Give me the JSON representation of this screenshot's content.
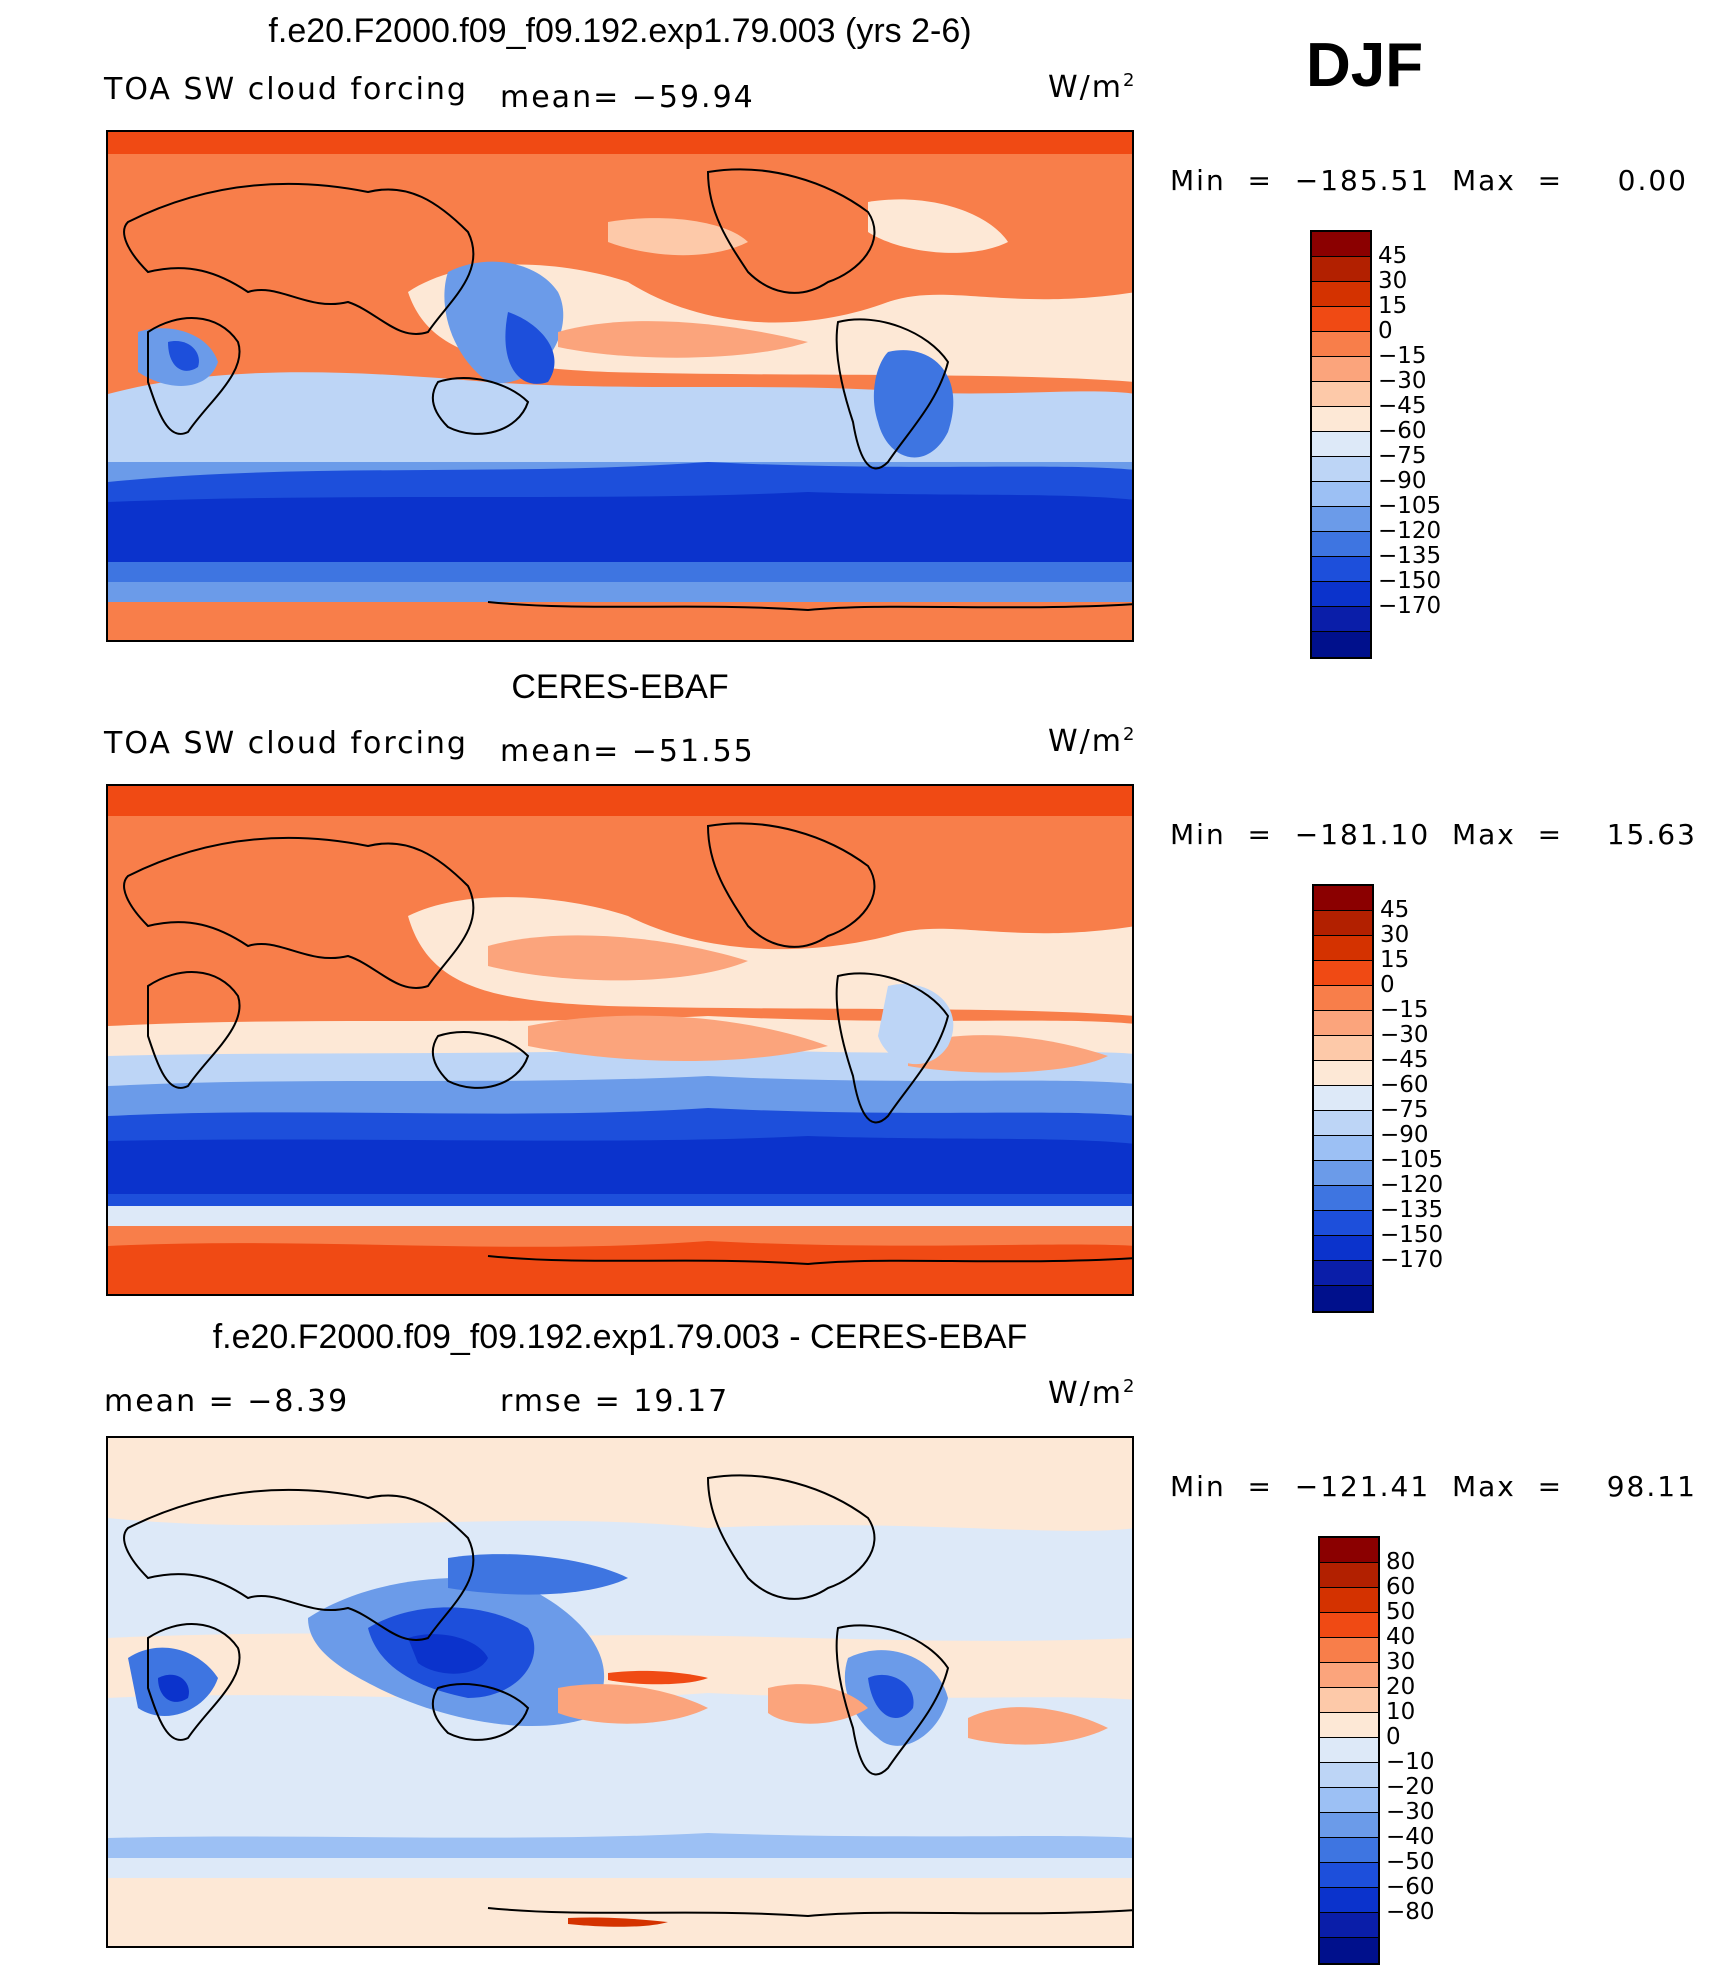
{
  "season": "DJF",
  "panels": [
    {
      "title": "f.e20.F2000.f09_f09.192.exp1.79.003 (yrs 2-6)",
      "left_label": "TOA SW cloud forcing",
      "mid_label": "mean= −59.94",
      "unit": "W/m",
      "unit_sup": "2",
      "minmax": "Min  =  −185.51  Max  =     0.00",
      "colorbar": {
        "colors": [
          "#8b0000",
          "#b22000",
          "#d43200",
          "#f04a14",
          "#f87e4a",
          "#fba47c",
          "#fdc9a9",
          "#fde8d6",
          "#dde9f8",
          "#bdd5f6",
          "#9cc0f4",
          "#6b9be9",
          "#3e75e1",
          "#1d4fdb",
          "#0b33cc",
          "#0a1ea9",
          "#00108c"
        ],
        "labels": [
          "45",
          "30",
          "15",
          "0",
          "−15",
          "−30",
          "−45",
          "−60",
          "−75",
          "−90",
          "−105",
          "−120",
          "−135",
          "−150",
          "−170"
        ]
      }
    },
    {
      "title": "CERES-EBAF",
      "left_label": "TOA SW cloud forcing",
      "mid_label": "mean= −51.55",
      "unit": "W/m",
      "unit_sup": "2",
      "minmax": "Min  =  −181.10  Max  =    15.63",
      "colorbar": {
        "colors": [
          "#8b0000",
          "#b22000",
          "#d43200",
          "#f04a14",
          "#f87e4a",
          "#fba47c",
          "#fdc9a9",
          "#fde8d6",
          "#dde9f8",
          "#bdd5f6",
          "#9cc0f4",
          "#6b9be9",
          "#3e75e1",
          "#1d4fdb",
          "#0b33cc",
          "#0a1ea9",
          "#00108c"
        ],
        "labels": [
          "45",
          "30",
          "15",
          "0",
          "−15",
          "−30",
          "−45",
          "−60",
          "−75",
          "−90",
          "−105",
          "−120",
          "−135",
          "−150",
          "−170"
        ]
      }
    },
    {
      "title": "f.e20.F2000.f09_f09.192.exp1.79.003 - CERES-EBAF",
      "left_label": "mean  =    −8.39",
      "mid_label": "rmse  =    19.17",
      "unit": "W/m",
      "unit_sup": "2",
      "minmax": "Min  =  −121.41  Max  =    98.11",
      "colorbar": {
        "colors": [
          "#8b0000",
          "#b22000",
          "#d43200",
          "#f04a14",
          "#f87e4a",
          "#fba47c",
          "#fdc9a9",
          "#fde8d6",
          "#dde9f8",
          "#bdd5f6",
          "#9cc0f4",
          "#6b9be9",
          "#3e75e1",
          "#1d4fdb",
          "#0b33cc",
          "#0a1ea9",
          "#00108c"
        ],
        "labels": [
          "80",
          "60",
          "50",
          "40",
          "30",
          "20",
          "10",
          "0",
          "−10",
          "−20",
          "−30",
          "−40",
          "−50",
          "−60",
          "−80"
        ]
      }
    }
  ]
}
